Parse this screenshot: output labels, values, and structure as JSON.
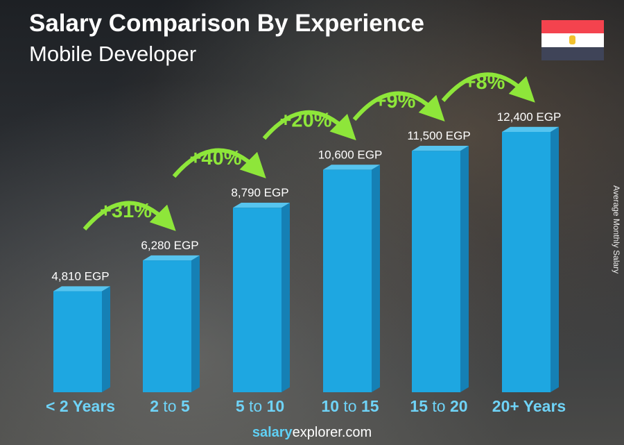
{
  "header": {
    "title": "Salary Comparison By Experience",
    "subtitle": "Mobile Developer"
  },
  "flag": {
    "colors": [
      "#f4434e",
      "#ffffff",
      "#3f4458"
    ],
    "emblem_color": "#f2c12e"
  },
  "footer": {
    "brand_bold": "salary",
    "brand_rest": "explorer",
    "domain": ".com"
  },
  "chart_data": {
    "type": "bar",
    "title": "Salary Comparison By Experience",
    "subtitle": "Mobile Developer",
    "ylabel": "Average Monthly Salary",
    "categories": [
      [
        "< 2 Years"
      ],
      [
        "2",
        " to ",
        "5"
      ],
      [
        "5",
        " to ",
        "10"
      ],
      [
        "10",
        " to ",
        "15"
      ],
      [
        "15",
        " to ",
        "20"
      ],
      [
        "20+ Years"
      ]
    ],
    "values": [
      4810,
      6280,
      8790,
      10600,
      11500,
      12400
    ],
    "value_labels": [
      "4,810 EGP",
      "6,280 EGP",
      "8,790 EGP",
      "10,600 EGP",
      "11,500 EGP",
      "12,400 EGP"
    ],
    "changes": [
      "+31%",
      "+40%",
      "+20%",
      "+9%",
      "+8%"
    ],
    "unit": "EGP",
    "bar_color": "#1ea7e1",
    "change_color": "#8ee63a",
    "category_color": "#6fd3f7"
  }
}
